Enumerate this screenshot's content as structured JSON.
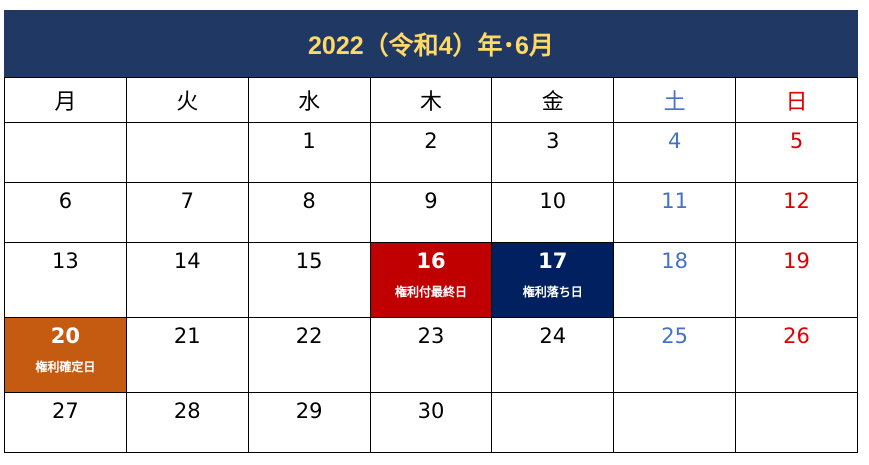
{
  "title": "2022（令和4）年･6月",
  "colors": {
    "title_bg": "#203864",
    "title_text": "#ffd966",
    "saturday": "#4472c4",
    "sunday": "#e00000",
    "red": "#c00000",
    "navy": "#002060",
    "orange": "#c55a11"
  },
  "weekdays": [
    "月",
    "火",
    "水",
    "木",
    "金",
    "土",
    "日"
  ],
  "weeks": [
    [
      {
        "day": ""
      },
      {
        "day": ""
      },
      {
        "day": "1"
      },
      {
        "day": "2"
      },
      {
        "day": "3"
      },
      {
        "day": "4"
      },
      {
        "day": "5"
      }
    ],
    [
      {
        "day": "6"
      },
      {
        "day": "7"
      },
      {
        "day": "8"
      },
      {
        "day": "9"
      },
      {
        "day": "10"
      },
      {
        "day": "11"
      },
      {
        "day": "12"
      }
    ],
    [
      {
        "day": "13"
      },
      {
        "day": "14"
      },
      {
        "day": "15"
      },
      {
        "day": "16",
        "label": "権利付最終日",
        "highlight": "red"
      },
      {
        "day": "17",
        "label": "権利落ち日",
        "highlight": "navy"
      },
      {
        "day": "18"
      },
      {
        "day": "19"
      }
    ],
    [
      {
        "day": "20",
        "label": "権利確定日",
        "highlight": "orange"
      },
      {
        "day": "21"
      },
      {
        "day": "22"
      },
      {
        "day": "23"
      },
      {
        "day": "24"
      },
      {
        "day": "25"
      },
      {
        "day": "26"
      }
    ],
    [
      {
        "day": "27"
      },
      {
        "day": "28"
      },
      {
        "day": "29"
      },
      {
        "day": "30"
      },
      {
        "day": ""
      },
      {
        "day": ""
      },
      {
        "day": ""
      }
    ]
  ]
}
